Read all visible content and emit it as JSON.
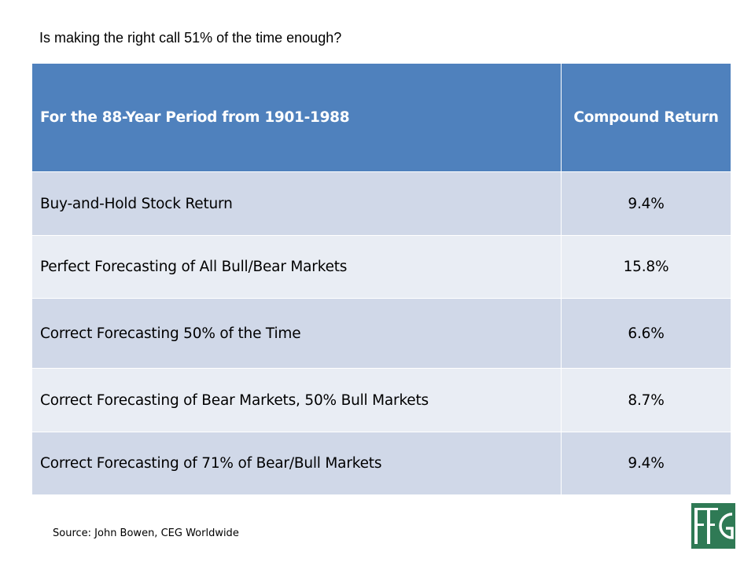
{
  "slide": {
    "title": "Is making the right call 51% of the time enough?"
  },
  "table": {
    "headers": {
      "label": "For the 88-Year Period from 1901-1988",
      "value": "Compound Return"
    },
    "rows": [
      {
        "label": "Buy-and-Hold Stock Return",
        "value": "9.4%"
      },
      {
        "label": "Perfect Forecasting of All Bull/Bear Markets",
        "value": "15.8%"
      },
      {
        "label": "Correct Forecasting 50% of the Time",
        "value": "6.6%"
      },
      {
        "label": "Correct Forecasting of Bear Markets, 50% Bull Markets",
        "value": "8.7%"
      },
      {
        "label": "Correct Forecasting of 71% of Bear/Bull Markets",
        "value": "9.4%"
      }
    ]
  },
  "footer": {
    "source": "Source:  John Bowen, CEG Worldwide"
  },
  "logo": {
    "letters": "FFG",
    "color": "#2f7a55"
  },
  "colors": {
    "header_bg": "#4f81bd",
    "row_dark": "#d0d8e8",
    "row_light": "#e9edf4"
  }
}
